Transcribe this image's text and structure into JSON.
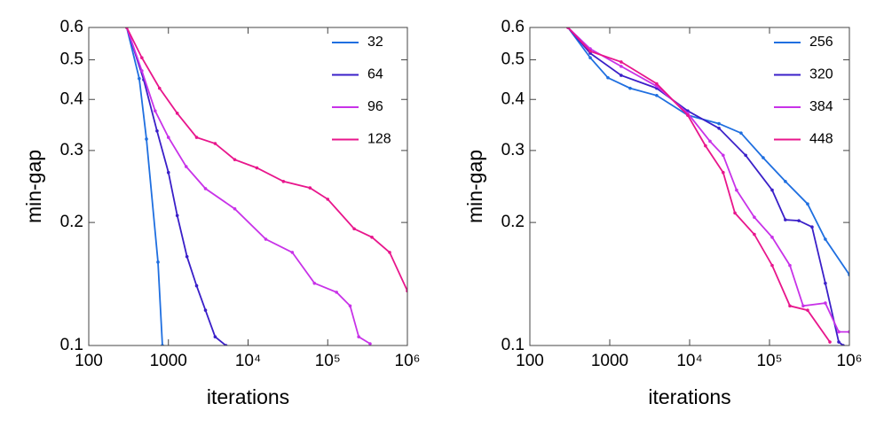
{
  "chart_data": [
    {
      "type": "line",
      "xlabel": "iterations",
      "ylabel": "min-gap",
      "xscale": "log",
      "yscale": "log",
      "xlim": [
        100,
        1000000
      ],
      "ylim": [
        0.1,
        0.6
      ],
      "xticks": [
        100,
        1000,
        {
          "value": 10000,
          "label": "10⁴"
        },
        {
          "value": 100000,
          "label": "10⁵"
        },
        {
          "value": 1000000,
          "label": "10⁶"
        }
      ],
      "yticks": [
        0.1,
        0.2,
        0.3,
        0.4,
        0.5,
        0.6
      ],
      "legend": "upper right",
      "series": [
        {
          "name": "32",
          "color": "#1f6fe0",
          "x": [
            300,
            430,
            530,
            740,
            840
          ],
          "values": [
            0.6,
            0.45,
            0.32,
            0.16,
            0.1
          ]
        },
        {
          "name": "64",
          "color": "#3a1fc8",
          "x": [
            300,
            490,
            720,
            1000,
            1290,
            1710,
            2260,
            2920,
            3860,
            5270
          ],
          "values": [
            0.6,
            0.447,
            0.335,
            0.265,
            0.208,
            0.165,
            0.14,
            0.122,
            0.105,
            0.1
          ]
        },
        {
          "name": "96",
          "color": "#c832e8",
          "x": [
            300,
            464,
            681,
            1000,
            1670,
            2920,
            6810,
            16700,
            35900,
            68100,
            129000,
            191000,
            245000,
            340000
          ],
          "values": [
            0.6,
            0.47,
            0.375,
            0.323,
            0.274,
            0.242,
            0.216,
            0.182,
            0.169,
            0.142,
            0.135,
            0.125,
            0.105,
            0.101
          ]
        },
        {
          "name": "128",
          "color": "#e8168c",
          "x": [
            300,
            464,
            774,
            1290,
            2260,
            3860,
            6810,
            12900,
            27800,
            59900,
            100000,
            215000,
            359000,
            599000,
            1000000
          ],
          "values": [
            0.6,
            0.506,
            0.426,
            0.37,
            0.323,
            0.312,
            0.285,
            0.272,
            0.252,
            0.243,
            0.228,
            0.193,
            0.184,
            0.169,
            0.136
          ]
        }
      ]
    },
    {
      "type": "line",
      "xlabel": "iterations",
      "ylabel": "min-gap",
      "xscale": "log",
      "yscale": "log",
      "xlim": [
        100,
        1000000
      ],
      "ylim": [
        0.1,
        0.6
      ],
      "xticks": [
        100,
        1000,
        {
          "value": 10000,
          "label": "10⁴"
        },
        {
          "value": 100000,
          "label": "10⁵"
        },
        {
          "value": 1000000,
          "label": "10⁶"
        }
      ],
      "yticks": [
        0.1,
        0.2,
        0.3,
        0.4,
        0.5,
        0.6
      ],
      "legend": "upper right",
      "series": [
        {
          "name": "256",
          "color": "#1f6fe0",
          "x": [
            300,
            570,
            950,
            1800,
            3870,
            9480,
            23300,
            44000,
            83400,
            158000,
            300000,
            500000,
            1000000
          ],
          "values": [
            0.6,
            0.506,
            0.452,
            0.426,
            0.409,
            0.366,
            0.349,
            0.331,
            0.288,
            0.252,
            0.222,
            0.182,
            0.149
          ]
        },
        {
          "name": "320",
          "color": "#3a1fc8",
          "x": [
            300,
            570,
            1390,
            3870,
            9480,
            23300,
            50300,
            108000,
            158000,
            233000,
            341000,
            500000,
            736000,
            836000
          ],
          "values": [
            0.6,
            0.519,
            0.458,
            0.426,
            0.375,
            0.34,
            0.292,
            0.24,
            0.203,
            0.202,
            0.195,
            0.142,
            0.102,
            0.1
          ]
        },
        {
          "name": "384",
          "color": "#c832e8",
          "x": [
            300,
            570,
            1390,
            3870,
            9480,
            18000,
            26300,
            38700,
            64600,
            108000,
            180000,
            264000,
            500000,
            736000,
            1000000
          ],
          "values": [
            0.6,
            0.532,
            0.482,
            0.431,
            0.37,
            0.316,
            0.292,
            0.24,
            0.206,
            0.184,
            0.157,
            0.125,
            0.127,
            0.108,
            0.108
          ]
        },
        {
          "name": "448",
          "color": "#e8168c",
          "x": [
            300,
            570,
            1390,
            3870,
            9480,
            15800,
            26300,
            36900,
            64600,
            108000,
            180000,
            300000,
            570000
          ],
          "values": [
            0.6,
            0.525,
            0.494,
            0.437,
            0.366,
            0.308,
            0.265,
            0.211,
            0.187,
            0.157,
            0.125,
            0.122,
            0.102
          ]
        }
      ]
    }
  ]
}
